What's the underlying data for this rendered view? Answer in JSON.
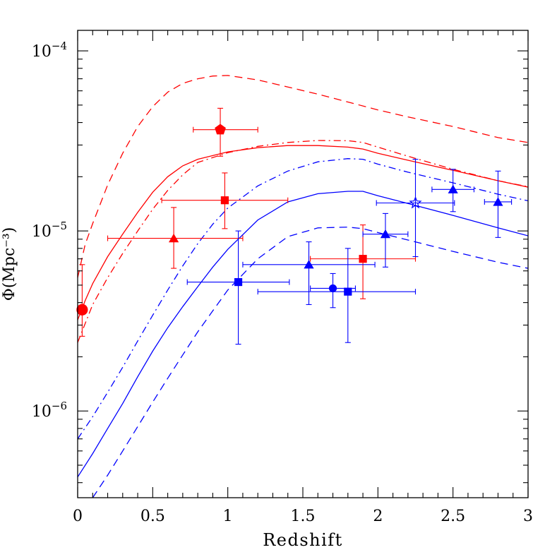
{
  "chart_data": {
    "type": "scatter",
    "xlabel": "Redshift",
    "ylabel": "Φ(Mpc⁻³)",
    "xlim": [
      0,
      3
    ],
    "ylim": [
      3.3e-07,
      0.00013
    ],
    "yscale": "log",
    "xticks": [
      {
        "value": 0,
        "label": "0"
      },
      {
        "value": 0.5,
        "label": "0.5"
      },
      {
        "value": 1,
        "label": "1"
      },
      {
        "value": 1.5,
        "label": "1.5"
      },
      {
        "value": 2,
        "label": "2"
      },
      {
        "value": 2.5,
        "label": "2.5"
      },
      {
        "value": 3,
        "label": "3"
      }
    ],
    "yticks": [
      {
        "value": 1e-06,
        "base": "10",
        "exp": "−6"
      },
      {
        "value": 1e-05,
        "base": "10",
        "exp": "−5"
      },
      {
        "value": 0.0001,
        "base": "10",
        "exp": "−4"
      }
    ],
    "grid": false,
    "colors": {
      "red": "#ff0000",
      "blue": "#0000ff"
    },
    "curves": [
      {
        "color": "red",
        "style": "dashed",
        "points": [
          [
            0,
            5.5e-06
          ],
          [
            0.05,
            8.4e-06
          ],
          [
            0.1,
            1.1e-05
          ],
          [
            0.2,
            1.8e-05
          ],
          [
            0.3,
            2.7e-05
          ],
          [
            0.4,
            3.8e-05
          ],
          [
            0.5,
            4.9e-05
          ],
          [
            0.6,
            5.9e-05
          ],
          [
            0.7,
            6.6e-05
          ],
          [
            0.8,
            7e-05
          ],
          [
            0.9,
            7.25e-05
          ],
          [
            1.0,
            7.3e-05
          ],
          [
            1.2,
            6.9e-05
          ],
          [
            1.4,
            6.3e-05
          ],
          [
            1.6,
            5.75e-05
          ],
          [
            1.8,
            5.2e-05
          ],
          [
            2.0,
            4.7e-05
          ],
          [
            2.2,
            4.3e-05
          ],
          [
            2.5,
            3.8e-05
          ],
          [
            2.8,
            3.3e-05
          ],
          [
            3.0,
            3.1e-05
          ]
        ]
      },
      {
        "color": "red",
        "style": "solid",
        "points": [
          [
            0,
            3.2e-06
          ],
          [
            0.05,
            4.1e-06
          ],
          [
            0.1,
            5.1e-06
          ],
          [
            0.2,
            7.2e-06
          ],
          [
            0.3,
            9.6e-06
          ],
          [
            0.4,
            1.27e-05
          ],
          [
            0.5,
            1.64e-05
          ],
          [
            0.6,
            2e-05
          ],
          [
            0.7,
            2.3e-05
          ],
          [
            0.8,
            2.5e-05
          ],
          [
            1.0,
            2.75e-05
          ],
          [
            1.2,
            2.9e-05
          ],
          [
            1.4,
            2.98e-05
          ],
          [
            1.6,
            2.98e-05
          ],
          [
            1.8,
            2.92e-05
          ],
          [
            1.9,
            2.85e-05
          ],
          [
            2.0,
            2.7e-05
          ],
          [
            2.2,
            2.47e-05
          ],
          [
            2.5,
            2.17e-05
          ],
          [
            2.8,
            1.9e-05
          ],
          [
            3.0,
            1.75e-05
          ]
        ]
      },
      {
        "color": "red",
        "style": "dashdot",
        "points": [
          [
            0,
            2.4e-06
          ],
          [
            0.1,
            3.9e-06
          ],
          [
            0.2,
            5.5e-06
          ],
          [
            0.3,
            7.5e-06
          ],
          [
            0.4,
            1e-05
          ],
          [
            0.5,
            1.32e-05
          ],
          [
            0.6,
            1.68e-05
          ],
          [
            0.7,
            2.05e-05
          ],
          [
            0.8,
            2.4e-05
          ],
          [
            1.0,
            2.72e-05
          ],
          [
            1.2,
            2.95e-05
          ],
          [
            1.4,
            3.1e-05
          ],
          [
            1.6,
            3.18e-05
          ],
          [
            1.8,
            3.17e-05
          ],
          [
            1.9,
            3.1e-05
          ],
          [
            2.0,
            2.92e-05
          ],
          [
            2.2,
            2.6e-05
          ],
          [
            2.5,
            2.2e-05
          ],
          [
            2.8,
            1.9e-05
          ],
          [
            3.0,
            1.76e-05
          ]
        ]
      },
      {
        "color": "blue",
        "style": "dashdot",
        "points": [
          [
            0,
            7e-07
          ],
          [
            0.1,
            9.3e-07
          ],
          [
            0.2,
            1.27e-06
          ],
          [
            0.3,
            1.75e-06
          ],
          [
            0.4,
            2.45e-06
          ],
          [
            0.5,
            3.4e-06
          ],
          [
            0.6,
            4.7e-06
          ],
          [
            0.7,
            6.4e-06
          ],
          [
            0.8,
            8.5e-06
          ],
          [
            0.9,
            1.09e-05
          ],
          [
            1.0,
            1.34e-05
          ],
          [
            1.2,
            1.78e-05
          ],
          [
            1.4,
            2.15e-05
          ],
          [
            1.6,
            2.42e-05
          ],
          [
            1.8,
            2.52e-05
          ],
          [
            1.9,
            2.5e-05
          ],
          [
            2.0,
            2.35e-05
          ],
          [
            2.2,
            2.12e-05
          ],
          [
            2.5,
            1.85e-05
          ],
          [
            2.8,
            1.6e-05
          ],
          [
            3.0,
            1.47e-05
          ]
        ]
      },
      {
        "color": "blue",
        "style": "solid",
        "points": [
          [
            0,
            4.3e-07
          ],
          [
            0.1,
            5.8e-07
          ],
          [
            0.2,
            8e-07
          ],
          [
            0.3,
            1.1e-06
          ],
          [
            0.4,
            1.55e-06
          ],
          [
            0.5,
            2.15e-06
          ],
          [
            0.6,
            2.9e-06
          ],
          [
            0.7,
            3.8e-06
          ],
          [
            0.8,
            4.9e-06
          ],
          [
            0.9,
            6.3e-06
          ],
          [
            1.0,
            7.9e-06
          ],
          [
            1.2,
            1.15e-05
          ],
          [
            1.4,
            1.45e-05
          ],
          [
            1.6,
            1.61e-05
          ],
          [
            1.8,
            1.66e-05
          ],
          [
            1.9,
            1.66e-05
          ],
          [
            2.0,
            1.57e-05
          ],
          [
            2.2,
            1.42e-05
          ],
          [
            2.5,
            1.22e-05
          ],
          [
            2.8,
            1.04e-05
          ],
          [
            3.0,
            9.4e-06
          ]
        ]
      },
      {
        "color": "blue",
        "style": "dashed",
        "points": [
          [
            0.1,
            3.3e-07
          ],
          [
            0.2,
            4.4e-07
          ],
          [
            0.3,
            6e-07
          ],
          [
            0.4,
            8.2e-07
          ],
          [
            0.5,
            1.12e-06
          ],
          [
            0.6,
            1.52e-06
          ],
          [
            0.7,
            2.05e-06
          ],
          [
            0.8,
            2.75e-06
          ],
          [
            0.9,
            3.6e-06
          ],
          [
            1.0,
            4.7e-06
          ],
          [
            1.2,
            7e-06
          ],
          [
            1.4,
            9.3e-06
          ],
          [
            1.6,
            1.04e-05
          ],
          [
            1.8,
            1.05e-05
          ],
          [
            1.9,
            1.03e-05
          ],
          [
            2.0,
            9.8e-06
          ],
          [
            2.2,
            8.9e-06
          ],
          [
            2.5,
            7.7e-06
          ],
          [
            2.8,
            6.7e-06
          ],
          [
            3.0,
            6.2e-06
          ]
        ]
      }
    ],
    "points": [
      {
        "color": "red",
        "marker": "circle",
        "filled": true,
        "x": 0.03,
        "y": 3.65e-06,
        "xerr": [
          0.03,
          0.03
        ],
        "yerr": [
          2.6e-06,
          6.5e-06
        ]
      },
      {
        "color": "red",
        "marker": "pentagon",
        "filled": true,
        "x": 0.95,
        "y": 3.65e-05,
        "xerr": [
          0.77,
          1.2
        ],
        "yerr": [
          2.6e-05,
          4.8e-05
        ]
      },
      {
        "color": "red",
        "marker": "square",
        "filled": true,
        "x": 0.98,
        "y": 1.48e-05,
        "xerr": [
          0.56,
          1.4
        ],
        "yerr": [
          1.03e-05,
          2.1e-05
        ]
      },
      {
        "color": "red",
        "marker": "triangle",
        "filled": true,
        "x": 0.64,
        "y": 9.1e-06,
        "xerr": [
          0.2,
          1.1
        ],
        "yerr": [
          6.2e-06,
          1.35e-05
        ]
      },
      {
        "color": "red",
        "marker": "square",
        "filled": true,
        "x": 1.9,
        "y": 7e-06,
        "xerr": [
          1.55,
          2.25
        ],
        "yerr": [
          4.2e-06,
          1.08e-05
        ]
      },
      {
        "color": "blue",
        "marker": "square",
        "filled": true,
        "x": 1.07,
        "y": 5.2e-06,
        "xerr": [
          0.73,
          1.41
        ],
        "yerr": [
          2.35e-06,
          1e-05
        ]
      },
      {
        "color": "blue",
        "marker": "triangle",
        "filled": true,
        "x": 1.54,
        "y": 6.5e-06,
        "xerr": [
          1.1,
          1.98
        ],
        "yerr": [
          3.9e-06,
          8.7e-06
        ]
      },
      {
        "color": "blue",
        "marker": "circle",
        "filled": true,
        "x": 1.7,
        "y": 4.8e-06,
        "xerr": [
          1.55,
          1.85
        ],
        "yerr": [
          3.75e-06,
          5.8e-06
        ]
      },
      {
        "color": "blue",
        "marker": "square",
        "filled": true,
        "x": 1.8,
        "y": 4.6e-06,
        "xerr": [
          1.2,
          2.25
        ],
        "yerr": [
          2.4e-06,
          8e-06
        ]
      },
      {
        "color": "blue",
        "marker": "triangle",
        "filled": true,
        "x": 2.05,
        "y": 9.6e-06,
        "xerr": [
          1.9,
          2.2
        ],
        "yerr": [
          6.3e-06,
          1.25e-05
        ]
      },
      {
        "color": "blue",
        "marker": "star",
        "filled": false,
        "x": 2.25,
        "y": 1.43e-05,
        "xerr": [
          1.99,
          2.51
        ],
        "yerr": [
          7.2e-06,
          2.5e-05
        ]
      },
      {
        "color": "blue",
        "marker": "triangle",
        "filled": true,
        "x": 2.5,
        "y": 1.7e-05,
        "xerr": [
          2.36,
          2.64
        ],
        "yerr": [
          1.28e-05,
          2.2e-05
        ]
      },
      {
        "color": "blue",
        "marker": "triangle",
        "filled": true,
        "x": 2.8,
        "y": 1.45e-05,
        "xerr": [
          2.71,
          2.89
        ],
        "yerr": [
          9.2e-06,
          2.15e-05
        ]
      }
    ]
  }
}
